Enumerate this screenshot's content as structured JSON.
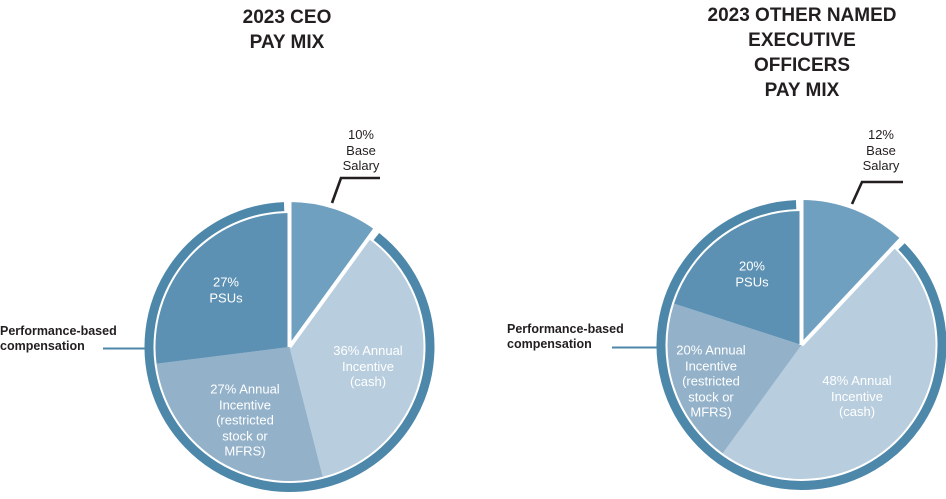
{
  "styles": {
    "background": "#FFFFFF",
    "ring_color": "#4D87A9",
    "connector_color": "#4D87A9",
    "callout_color": "#231F20",
    "title_color": "#231F20"
  },
  "chart_data": [
    {
      "type": "pie",
      "title": "2023 CEO PAY MIX",
      "title_lines": [
        "2023 CEO",
        "PAY MIX"
      ],
      "legend_position": "none",
      "slices": [
        {
          "id": "base-salary",
          "label": "Base Salary",
          "value": 10,
          "label_lines": [
            "10%",
            "Base",
            "Salary"
          ],
          "color": "#70A0C0",
          "text_color": "#231F20",
          "separated": true,
          "callout": true
        },
        {
          "id": "annual-incentive-cash",
          "label": "Annual Incentive (cash)",
          "value": 36,
          "label_lines": [
            "36% Annual",
            "Incentive",
            "(cash)"
          ],
          "color": "#B8CDDE",
          "text_color": "#FFFFFF"
        },
        {
          "id": "annual-incentive-restricted",
          "label": "Annual Incentive (restricted stock or MFRS)",
          "value": 27,
          "label_lines": [
            "27% Annual",
            "Incentive",
            "(restricted",
            "stock or",
            "MFRS)"
          ],
          "color": "#93B2CA",
          "text_color": "#FFFFFF"
        },
        {
          "id": "psus",
          "label": "PSUs",
          "value": 27,
          "label_lines": [
            "27%",
            "PSUs"
          ],
          "color": "#5C91B3",
          "text_color": "#FFFFFF"
        }
      ],
      "annotation": {
        "text": "Performance-based compensation",
        "lines": [
          "Performance-based",
          "compensation"
        ]
      }
    },
    {
      "type": "pie",
      "title": "2023 OTHER NAMED EXECUTIVE OFFICERS PAY MIX",
      "title_lines": [
        "2023 OTHER NAMED",
        "EXECUTIVE",
        "OFFICERS",
        "PAY MIX"
      ],
      "legend_position": "none",
      "slices": [
        {
          "id": "base-salary",
          "label": "Base Salary",
          "value": 12,
          "label_lines": [
            "12%",
            "Base",
            "Salary"
          ],
          "color": "#70A0C0",
          "text_color": "#231F20",
          "separated": true,
          "callout": true
        },
        {
          "id": "annual-incentive-cash",
          "label": "Annual Incentive (cash)",
          "value": 48,
          "label_lines": [
            "48% Annual",
            "Incentive",
            "(cash)"
          ],
          "color": "#B8CDDE",
          "text_color": "#FFFFFF"
        },
        {
          "id": "annual-incentive-restricted",
          "label": "Annual Incentive (restricted stock or MFRS)",
          "value": 20,
          "label_lines": [
            "20% Annual",
            "Incentive",
            "(restricted",
            "stock or",
            "MFRS)"
          ],
          "color": "#93B2CA",
          "text_color": "#FFFFFF"
        },
        {
          "id": "psus",
          "label": "PSUs",
          "value": 20,
          "label_lines": [
            "20%",
            "PSUs"
          ],
          "color": "#5C91B3",
          "text_color": "#FFFFFF"
        }
      ],
      "annotation": {
        "text": "Performance-based compensation",
        "lines": [
          "Performance-based",
          "compensation"
        ]
      }
    }
  ]
}
